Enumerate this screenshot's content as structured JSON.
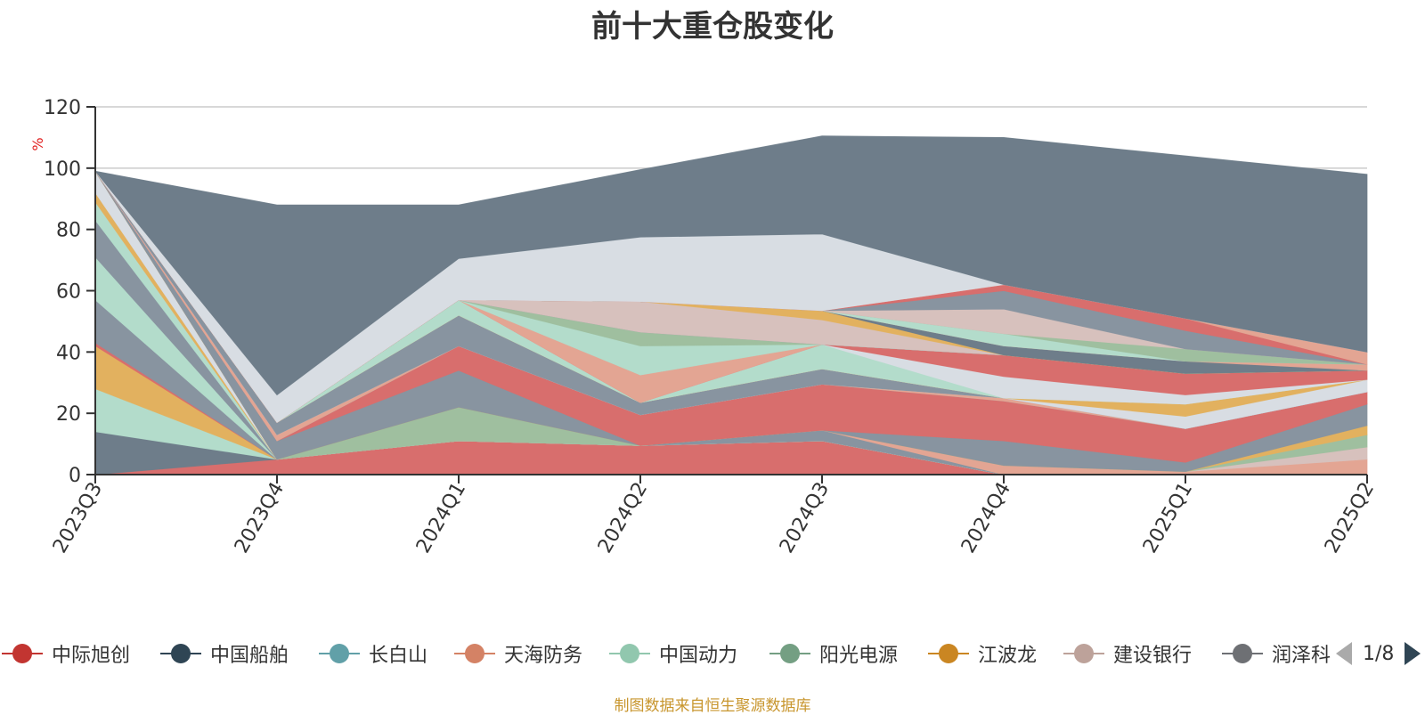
{
  "chart_data": {
    "type": "area",
    "title": "前十大重仓股变化",
    "ylabel": "%",
    "ylim": [
      0,
      120
    ],
    "y_ticks": [
      0,
      20,
      40,
      60,
      80,
      100,
      120
    ],
    "grid": true,
    "stacked": true,
    "categories": [
      "2023Q3",
      "2023Q4",
      "2024Q1",
      "2024Q2",
      "2024Q3",
      "2024Q4",
      "2025Q1",
      "2025Q2"
    ],
    "series": [
      {
        "color": "#d86e6d",
        "values": [
          0,
          5,
          11,
          9.5,
          11,
          0,
          0,
          0
        ]
      },
      {
        "color": "#6e7d8a",
        "values": [
          14,
          0,
          0,
          0,
          0,
          0,
          0,
          0
        ]
      },
      {
        "color": "#b3dccb",
        "values": [
          14,
          0,
          0,
          0,
          0,
          0,
          0,
          0
        ]
      },
      {
        "color": "#e2b15f",
        "values": [
          14,
          0,
          0,
          0,
          0,
          0,
          0,
          0
        ]
      },
      {
        "color": "#d86e6d",
        "values": [
          1,
          0,
          0,
          0,
          0,
          0,
          0,
          0
        ]
      },
      {
        "color": "#8894a0",
        "values": [
          14,
          0,
          0,
          0,
          0,
          0,
          0,
          0
        ]
      },
      {
        "color": "#b3dccb",
        "values": [
          14,
          0,
          0,
          0,
          0,
          0,
          0,
          0
        ]
      },
      {
        "color": "#8894a0",
        "values": [
          12,
          0,
          0,
          0,
          0,
          0,
          0,
          0
        ]
      },
      {
        "color": "#b3dccb",
        "values": [
          6,
          0,
          0,
          0,
          0,
          0,
          0,
          0
        ]
      },
      {
        "color": "#e2b15f",
        "values": [
          3,
          0,
          0,
          0,
          0,
          0,
          0,
          0
        ]
      },
      {
        "color": "#d8dde3",
        "values": [
          7,
          0,
          0,
          0,
          0,
          0,
          0,
          0
        ]
      },
      {
        "color": "#8894a0",
        "values": [
          0,
          0,
          0,
          0,
          3.5,
          0,
          0,
          0
        ]
      },
      {
        "color": "#e3a593",
        "values": [
          0,
          0,
          0,
          0,
          0,
          3,
          1,
          5
        ]
      },
      {
        "color": "#d7c1bd",
        "values": [
          0,
          0,
          0,
          0,
          0,
          0,
          0,
          4
        ]
      },
      {
        "color": "#9fbf9f",
        "values": [
          0,
          0,
          11,
          0,
          0,
          0,
          0,
          4
        ]
      },
      {
        "color": "#e2b15f",
        "values": [
          0,
          0,
          0,
          0,
          0,
          0,
          0,
          3
        ]
      },
      {
        "color": "#8894a0",
        "values": [
          0,
          6,
          12,
          0,
          0,
          8,
          3,
          7
        ]
      },
      {
        "color": "#d86e6d",
        "values": [
          0,
          0,
          8,
          10,
          15,
          13,
          11,
          4
        ]
      },
      {
        "color": "#8894a0",
        "values": [
          0,
          0,
          0,
          0,
          0,
          0,
          0,
          0
        ]
      },
      {
        "color": "#e3a593",
        "values": [
          0,
          2,
          0,
          0,
          0,
          1,
          0,
          0
        ]
      },
      {
        "color": "#d8dde3",
        "values": [
          0,
          0,
          0,
          0,
          0,
          0,
          0,
          0
        ]
      },
      {
        "color": "#8894a0",
        "values": [
          0,
          4,
          10,
          4,
          5,
          0,
          0,
          0
        ]
      },
      {
        "color": "#d8dde3",
        "values": [
          0,
          0,
          0,
          0,
          0,
          0,
          4,
          4
        ]
      },
      {
        "color": "#e2b15f",
        "values": [
          0,
          0,
          0,
          0,
          0,
          0,
          4,
          0
        ]
      },
      {
        "color": "#b3dccb",
        "values": [
          0,
          0,
          5,
          0,
          8,
          0,
          0,
          0
        ]
      },
      {
        "color": "#d8dde3",
        "values": [
          0,
          0,
          0,
          0,
          0,
          7,
          3,
          0
        ]
      },
      {
        "color": "#d86e6d",
        "values": [
          0,
          0,
          0,
          0,
          0,
          7,
          7,
          3
        ]
      },
      {
        "color": "#e3a593",
        "values": [
          0,
          0,
          0,
          9,
          0,
          0,
          0,
          0
        ]
      },
      {
        "color": "#b3dccb",
        "values": [
          0,
          0,
          0,
          9.5,
          0,
          0,
          0,
          0
        ]
      },
      {
        "color": "#9fbf9f",
        "values": [
          0,
          0,
          0,
          4.5,
          0,
          0,
          0,
          0
        ]
      },
      {
        "color": "#8894a0",
        "values": [
          0,
          0,
          0,
          0,
          0,
          0,
          0,
          0
        ]
      },
      {
        "color": "#d7c1bd",
        "values": [
          0,
          0,
          0,
          10,
          8,
          0,
          0,
          0
        ]
      },
      {
        "color": "#e2b15f",
        "values": [
          0,
          0,
          0,
          0,
          3,
          0,
          0,
          0
        ]
      },
      {
        "color": "#6e7d8a",
        "values": [
          0,
          0,
          0,
          0,
          0,
          3,
          4,
          0
        ]
      },
      {
        "color": "#e3a593",
        "values": [
          0,
          0,
          0,
          0,
          0,
          0,
          0,
          2
        ]
      },
      {
        "color": "#b3dccb",
        "values": [
          0,
          0,
          0,
          0,
          0,
          4,
          0,
          0
        ]
      },
      {
        "color": "#9fbf9f",
        "values": [
          0,
          0,
          0,
          0,
          0,
          0,
          4,
          0
        ]
      },
      {
        "color": "#d7c1bd",
        "values": [
          0,
          0,
          0,
          0,
          0,
          8,
          0,
          0
        ]
      },
      {
        "color": "#8894a0",
        "values": [
          0,
          0,
          0,
          0,
          0,
          6,
          6,
          0
        ]
      },
      {
        "color": "#d86e6d",
        "values": [
          0,
          0,
          0,
          0,
          0,
          2,
          4,
          0
        ]
      },
      {
        "color": "#e3a593",
        "values": [
          0,
          0,
          0,
          0,
          0,
          0,
          0,
          4
        ]
      },
      {
        "color": "#d8dde3",
        "values": [
          0,
          9,
          13.5,
          21,
          25,
          0,
          0,
          0
        ]
      },
      {
        "color": "#6e7d8a",
        "values": [
          0,
          62,
          17.5,
          22,
          32,
          48,
          53,
          58
        ]
      }
    ]
  },
  "legend": {
    "items": [
      {
        "label": "中际旭创",
        "color": "#c23531"
      },
      {
        "label": "中国船舶",
        "color": "#2f4554"
      },
      {
        "label": "长白山",
        "color": "#61a0a8"
      },
      {
        "label": "天海防务",
        "color": "#d48265"
      },
      {
        "label": "中国动力",
        "color": "#91c7ae"
      },
      {
        "label": "阳光电源",
        "color": "#749f83"
      },
      {
        "label": "江波龙",
        "color": "#ca8622"
      },
      {
        "label": "建设银行",
        "color": "#bda29a"
      },
      {
        "label": "润泽科",
        "color": "#6e7074"
      }
    ],
    "pager": "1/8"
  },
  "source_note": "制图数据来自恒生聚源数据库"
}
